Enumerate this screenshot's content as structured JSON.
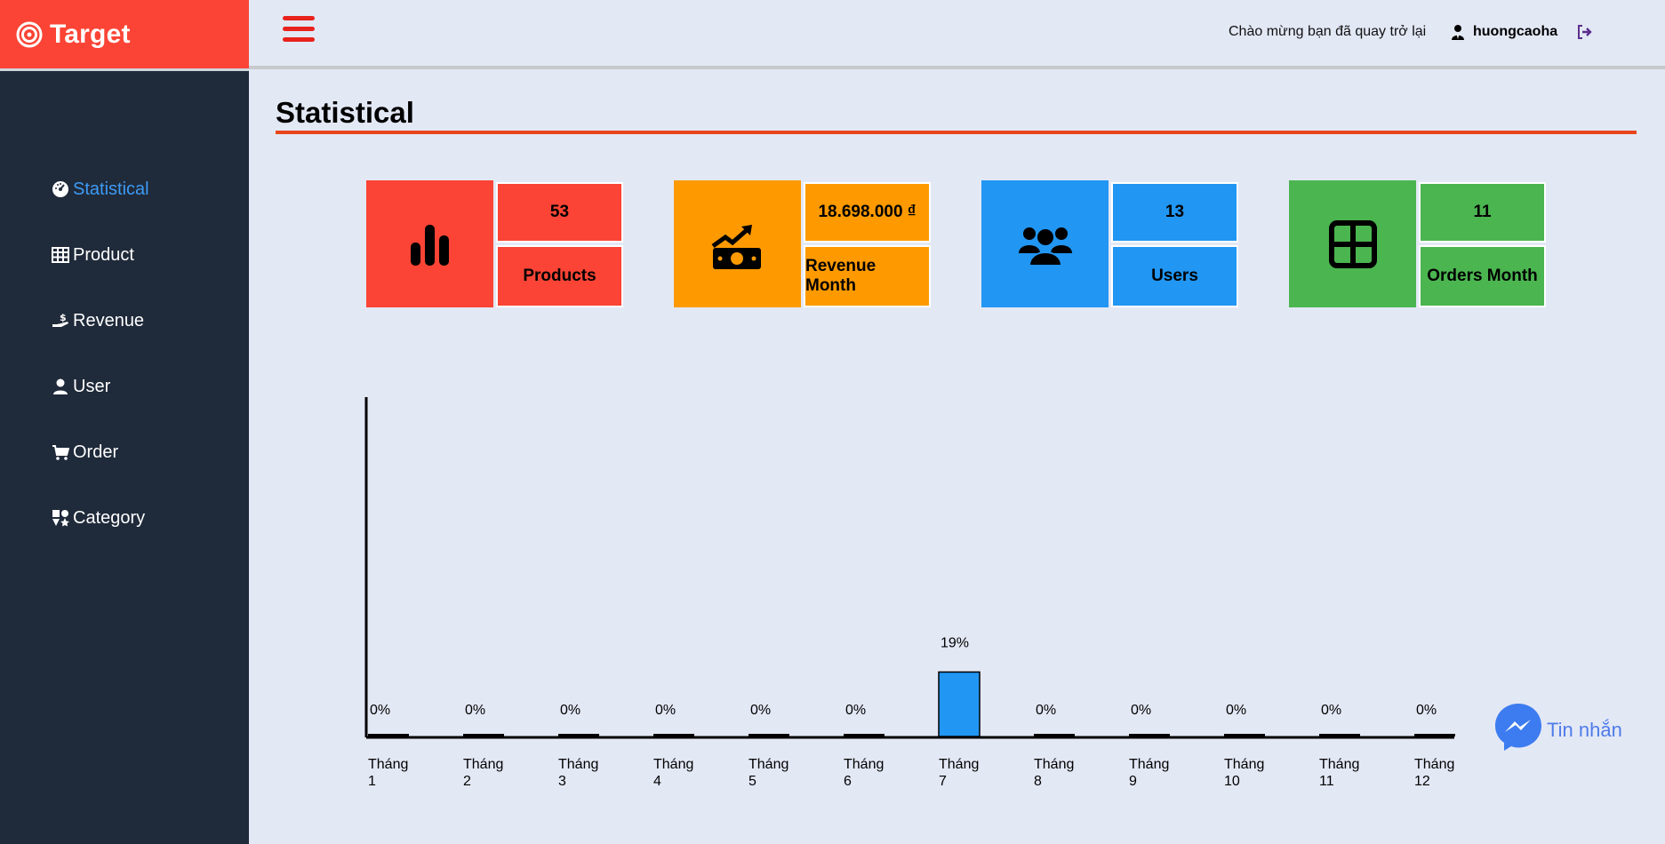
{
  "brand": {
    "name": "Target"
  },
  "sidebar": {
    "items": [
      {
        "label": "Statistical",
        "icon": "dashboard-icon",
        "active": true
      },
      {
        "label": "Product",
        "icon": "grid-icon",
        "active": false
      },
      {
        "label": "Revenue",
        "icon": "hand-money-icon",
        "active": false
      },
      {
        "label": "User",
        "icon": "user-icon",
        "active": false
      },
      {
        "label": "Order",
        "icon": "cart-icon",
        "active": false
      },
      {
        "label": "Category",
        "icon": "category-icon",
        "active": false
      }
    ]
  },
  "header": {
    "welcome": "Chào mừng bạn đã quay trở lại",
    "username": "huongcaoha"
  },
  "page": {
    "title": "Statistical"
  },
  "cards": [
    {
      "value": "53",
      "label": "Products",
      "color": "#fb4435",
      "icon": "bar-chart-icon"
    },
    {
      "value": "18.698.000 ₫",
      "label": "Revenue Month",
      "color": "#fe9a00",
      "icon": "money-trend-icon"
    },
    {
      "value": "13",
      "label": "Users",
      "color": "#2196f3",
      "icon": "users-icon"
    },
    {
      "value": "11",
      "label": "Orders Month",
      "color": "#4bb550",
      "icon": "table-icon"
    }
  ],
  "chart_data": {
    "type": "bar",
    "categories": [
      [
        "Tháng",
        "1"
      ],
      [
        "Tháng",
        "2"
      ],
      [
        "Tháng",
        "3"
      ],
      [
        "Tháng",
        "4"
      ],
      [
        "Tháng",
        "5"
      ],
      [
        "Tháng",
        "6"
      ],
      [
        "Tháng",
        "7"
      ],
      [
        "Tháng",
        "8"
      ],
      [
        "Tháng",
        "9"
      ],
      [
        "Tháng",
        "10"
      ],
      [
        "Tháng",
        "11"
      ],
      [
        "Tháng",
        "12"
      ]
    ],
    "values": [
      0,
      0,
      0,
      0,
      0,
      0,
      19,
      0,
      0,
      0,
      0,
      0
    ],
    "value_labels": [
      "0%",
      "0%",
      "0%",
      "0%",
      "0%",
      "0%",
      "19%",
      "0%",
      "0%",
      "0%",
      "0%",
      "0%"
    ],
    "bar_color": "#2196f3",
    "ylim": [
      0,
      100
    ],
    "grid": false
  },
  "messenger": {
    "label": "Tin nhắn",
    "color": "#4f7ce8"
  }
}
